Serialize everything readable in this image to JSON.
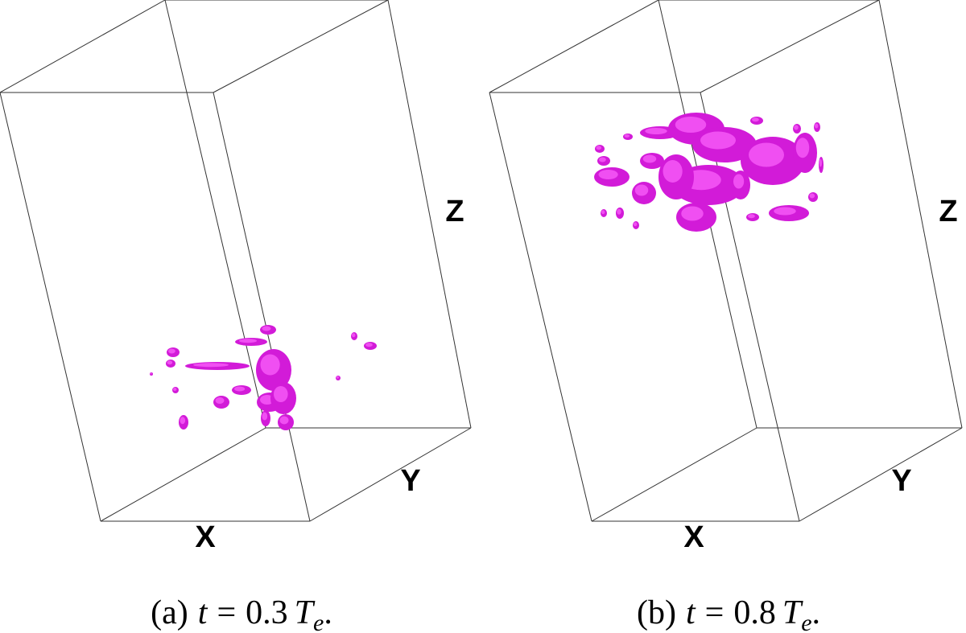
{
  "panels": [
    {
      "axes": {
        "x": "X",
        "y": "Y",
        "z": "Z"
      },
      "caption": {
        "prefix": "(a)",
        "variable": "t",
        "relation": "=",
        "number": "0.3",
        "symbol": "T",
        "subscript": "e",
        "suffix": "."
      }
    },
    {
      "axes": {
        "x": "X",
        "y": "Y",
        "z": "Z"
      },
      "caption": {
        "prefix": "(b)",
        "variable": "t",
        "relation": "=",
        "number": "0.8",
        "symbol": "T",
        "subscript": "e",
        "suffix": "."
      }
    }
  ]
}
